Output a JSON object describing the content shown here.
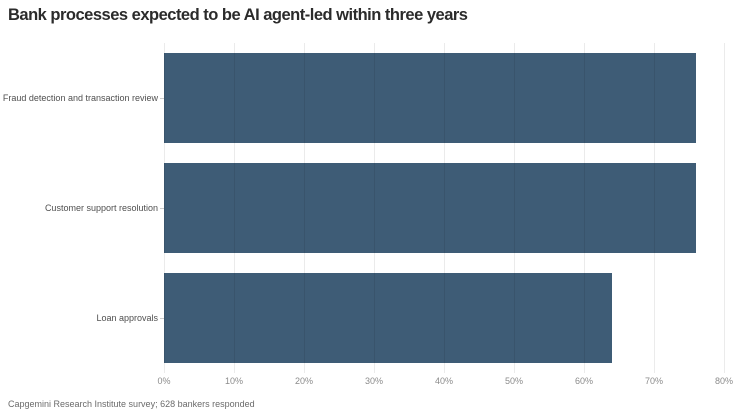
{
  "chart_data": {
    "type": "bar",
    "orientation": "horizontal",
    "title": "Bank processes expected to be AI agent-led within three years",
    "categories": [
      "Fraud detection and transaction review",
      "Customer support resolution",
      "Loan approvals"
    ],
    "values": [
      76,
      76,
      64
    ],
    "value_unit": "%",
    "xlim": [
      0,
      80
    ],
    "x_tick_labels": [
      "0%",
      "10%",
      "20%",
      "30%",
      "40%",
      "50%",
      "60%",
      "70%",
      "80%"
    ],
    "grid": "vertical",
    "legend": "none",
    "bar_color": "#3e5c76",
    "source_note": "Capgemini Research Institute survey; 628 bankers responded"
  }
}
